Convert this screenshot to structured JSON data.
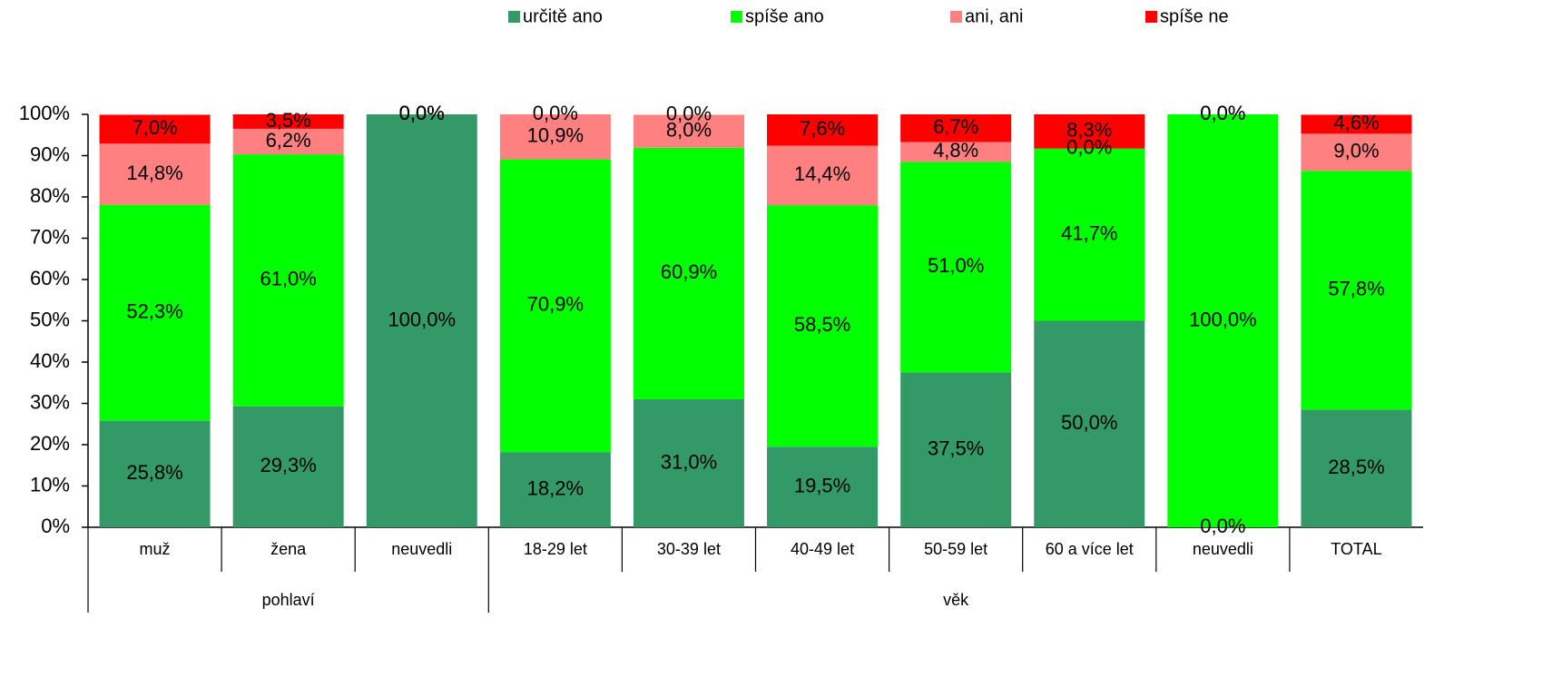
{
  "chart_data": {
    "type": "stacked_bar",
    "categories": [
      "muž",
      "žena",
      "neuvedli",
      "18-29 let",
      "30-39 let",
      "40-49 let",
      "50-59 let",
      "60 a více let",
      "neuvedli",
      "TOTAL"
    ],
    "groups": [
      {
        "label": "pohlaví",
        "count": 3
      },
      {
        "label": "věk",
        "count": 7
      }
    ],
    "series": [
      {
        "name": "určitě ano",
        "color": "#339966",
        "values": [
          25.8,
          29.3,
          100.0,
          18.2,
          31.0,
          19.5,
          37.5,
          50.0,
          0.0,
          28.5
        ],
        "value_labels": [
          "25,8%",
          "29,3%",
          "100,0%",
          "18,2%",
          "31,0%",
          "19,5%",
          "37,5%",
          "50,0%",
          "0,0%",
          "28,5%"
        ]
      },
      {
        "name": "spíše ano",
        "color": "#00ff00",
        "values": [
          52.3,
          61.0,
          0.0,
          70.9,
          60.9,
          58.5,
          51.0,
          41.7,
          100.0,
          57.8
        ],
        "value_labels": [
          "52,3%",
          "61,0%",
          "0,0%",
          "70,9%",
          "60,9%",
          "58,5%",
          "51,0%",
          "41,7%",
          "100,0%",
          "57,8%"
        ]
      },
      {
        "name": "ani, ani",
        "color": "#ff8080",
        "values": [
          14.8,
          6.2,
          0.0,
          10.9,
          8.0,
          14.4,
          4.8,
          0.0,
          0.0,
          9.0
        ],
        "value_labels": [
          "14,8%",
          "6,2%",
          "0,0%",
          "10,9%",
          "8,0%",
          "14,4%",
          "4,8%",
          "0,0%",
          "0,0%",
          "9,0%"
        ]
      },
      {
        "name": "spíše ne",
        "color": "#ff0000",
        "values": [
          7.0,
          3.5,
          0.0,
          0.0,
          0.0,
          7.6,
          6.7,
          8.3,
          0.0,
          4.6
        ],
        "value_labels": [
          "7,0%",
          "3,5%",
          "0,0%",
          "0,0%",
          "0,0%",
          "7,6%",
          "6,7%",
          "8,3%",
          "0,0%",
          "4,6%"
        ]
      }
    ],
    "ylim": [
      0,
      100
    ],
    "yticks": [
      {
        "value": 0,
        "label": "0%"
      },
      {
        "value": 10,
        "label": "10%"
      },
      {
        "value": 20,
        "label": "20%"
      },
      {
        "value": 30,
        "label": "30%"
      },
      {
        "value": 40,
        "label": "40%"
      },
      {
        "value": 50,
        "label": "50%"
      },
      {
        "value": 60,
        "label": "60%"
      },
      {
        "value": 70,
        "label": "70%"
      },
      {
        "value": 80,
        "label": "80%"
      },
      {
        "value": 90,
        "label": "90%"
      },
      {
        "value": 100,
        "label": "100%"
      }
    ]
  }
}
